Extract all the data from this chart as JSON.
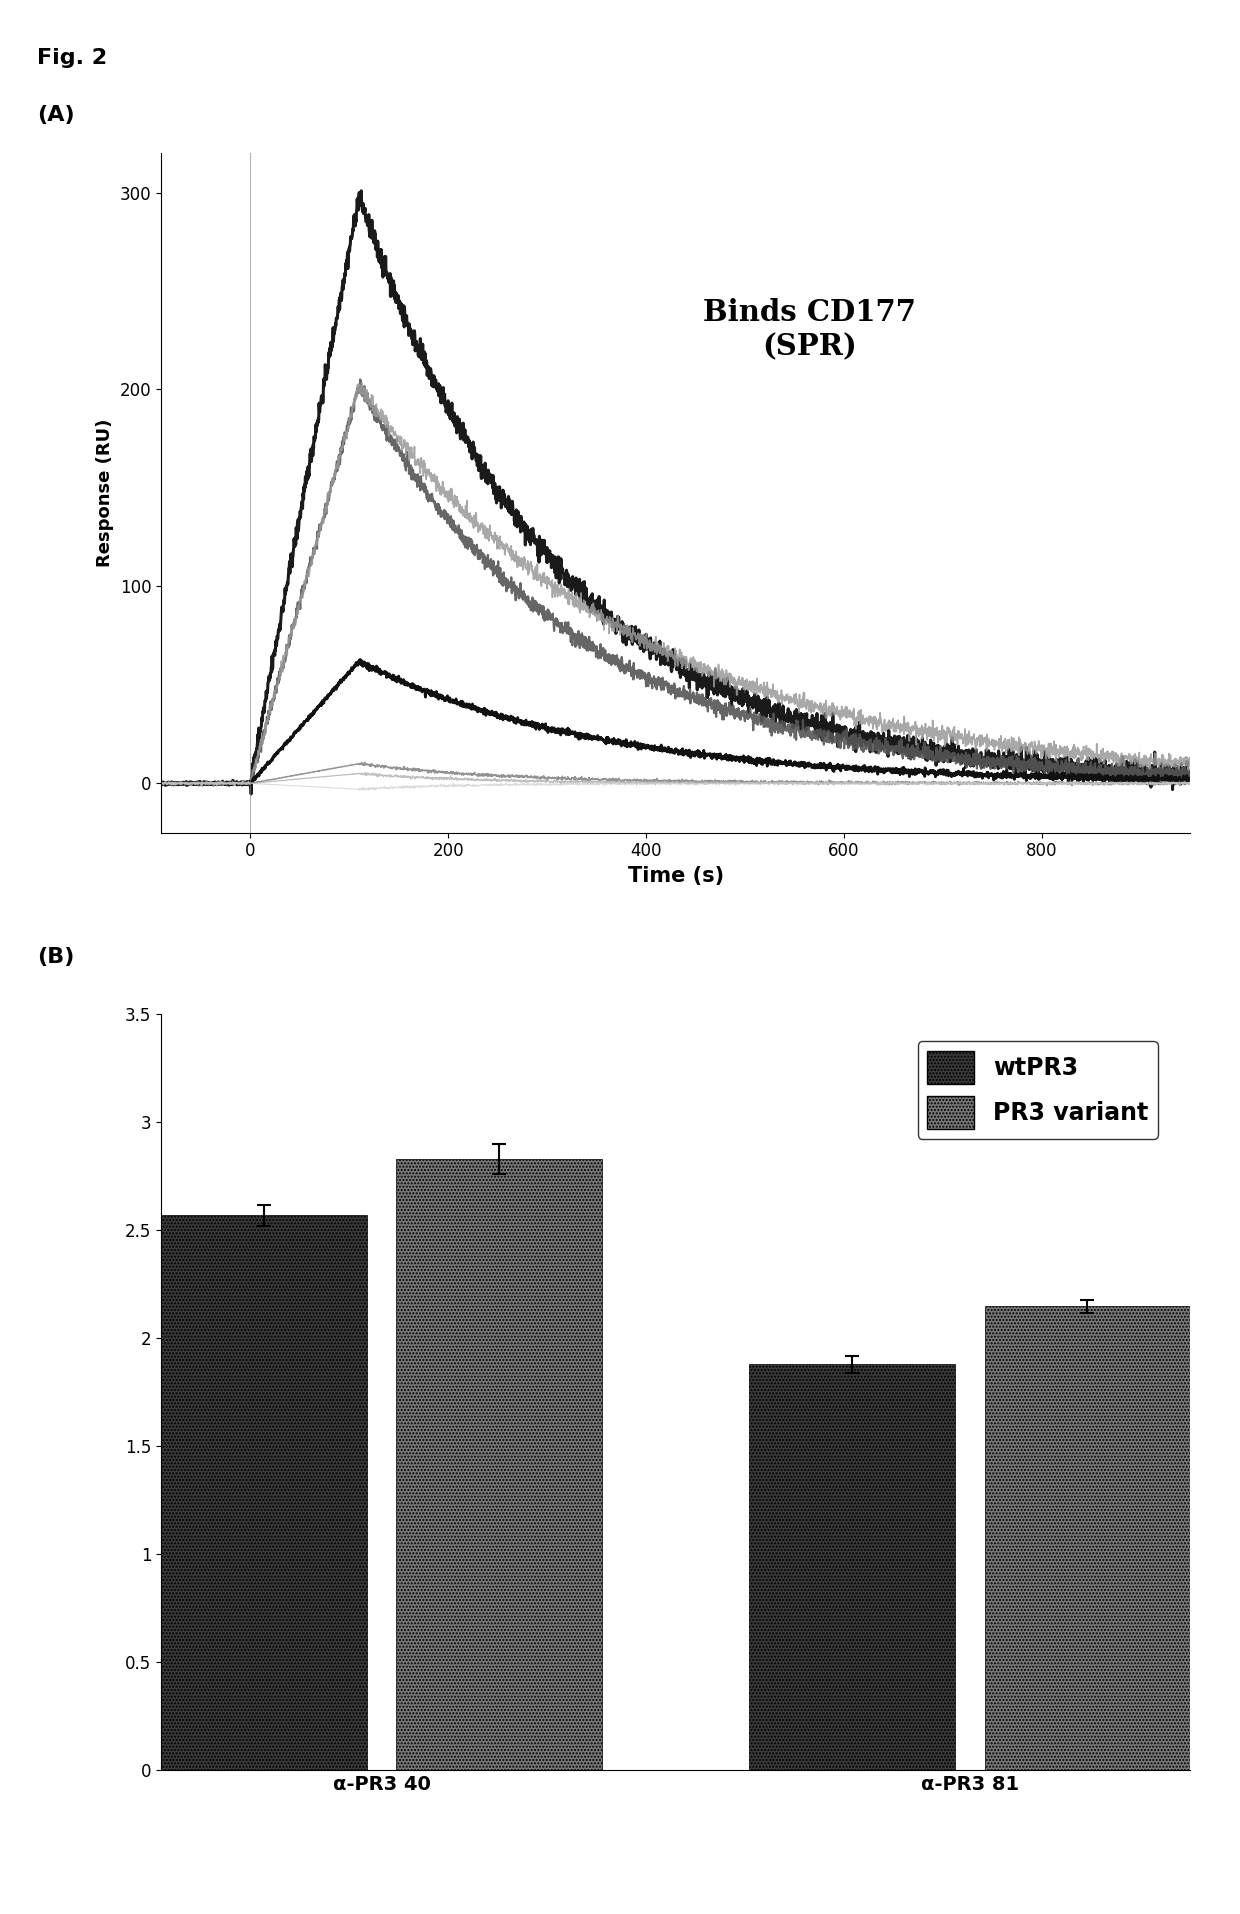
{
  "fig_label": "Fig. 2",
  "panel_A_label": "(A)",
  "panel_B_label": "(B)",
  "spr_title": "Binds CD177\n(SPR)",
  "spr_xlabel": "Time (s)",
  "spr_ylabel": "Response (RU)",
  "spr_xlim": [
    -90,
    950
  ],
  "spr_ylim": [
    -25,
    320
  ],
  "spr_yticks": [
    0,
    100,
    200,
    300
  ],
  "spr_xticks": [
    0,
    200,
    400,
    600,
    800
  ],
  "spr_vline_x": 0,
  "curves": [
    {
      "peak_val": 298,
      "color": "#1a1a1a",
      "lw": 2.2,
      "tau": 200,
      "alpha": 1.0
    },
    {
      "peak_val": 202,
      "color": "#555555",
      "lw": 1.6,
      "tau": 220,
      "alpha": 0.9
    },
    {
      "peak_val": 202,
      "color": "#999999",
      "lw": 1.2,
      "tau": 280,
      "alpha": 0.85
    },
    {
      "peak_val": 62,
      "color": "#111111",
      "lw": 2.0,
      "tau": 240,
      "alpha": 1.0
    },
    {
      "peak_val": 10,
      "color": "#777777",
      "lw": 1.0,
      "tau": 150,
      "alpha": 0.8
    },
    {
      "peak_val": 5,
      "color": "#aaaaaa",
      "lw": 0.9,
      "tau": 120,
      "alpha": 0.75
    },
    {
      "peak_val": -3,
      "color": "#cccccc",
      "lw": 0.8,
      "tau": 100,
      "alpha": 0.7
    }
  ],
  "bar_groups": [
    "α-PR3 40",
    "α-PR3 81"
  ],
  "bar_values_wt": [
    2.57,
    1.88
  ],
  "bar_values_var": [
    2.83,
    2.15
  ],
  "bar_errors_wt": [
    0.05,
    0.04
  ],
  "bar_errors_var": [
    0.07,
    0.03
  ],
  "bar_color_wt": "#3a3a3a",
  "bar_color_var": "#787878",
  "bar_hatch_wt": ".....",
  "bar_hatch_var": ".....",
  "bar_ylim": [
    0,
    3.5
  ],
  "bar_yticks": [
    0,
    0.5,
    1.0,
    1.5,
    2.0,
    2.5,
    3.0,
    3.5
  ],
  "bar_ytick_labels": [
    "0",
    "0.5",
    "1",
    "1.5",
    "2",
    "2.5",
    "3",
    "3.5"
  ],
  "legend_label_wt": "wtPR3",
  "legend_label_var": "PR3 variant",
  "bar_width": 0.28,
  "x_positions": [
    0.3,
    1.1
  ]
}
